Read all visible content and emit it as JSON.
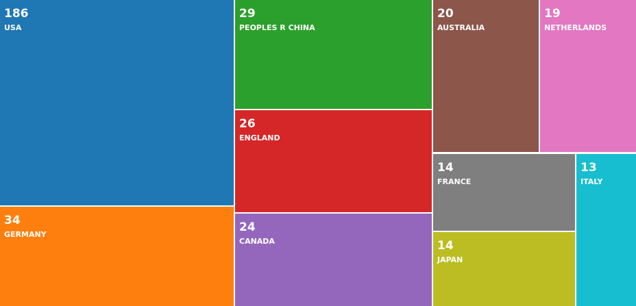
{
  "chart_data": {
    "type": "treemap",
    "categories": [
      "USA",
      "GERMANY",
      "PEOPLES R CHINA",
      "ENGLAND",
      "CANADA",
      "AUSTRALIA",
      "NETHERLANDS",
      "FRANCE",
      "JAPAN",
      "ITALY"
    ],
    "values": [
      186,
      34,
      29,
      26,
      24,
      20,
      19,
      14,
      14,
      13
    ],
    "colors": [
      "#1f77b4",
      "#ff7f0e",
      "#2ca02c",
      "#d62728",
      "#9467bd",
      "#8c564b",
      "#e377c2",
      "#7f7f7f",
      "#bcbd22",
      "#17becf"
    ]
  }
}
